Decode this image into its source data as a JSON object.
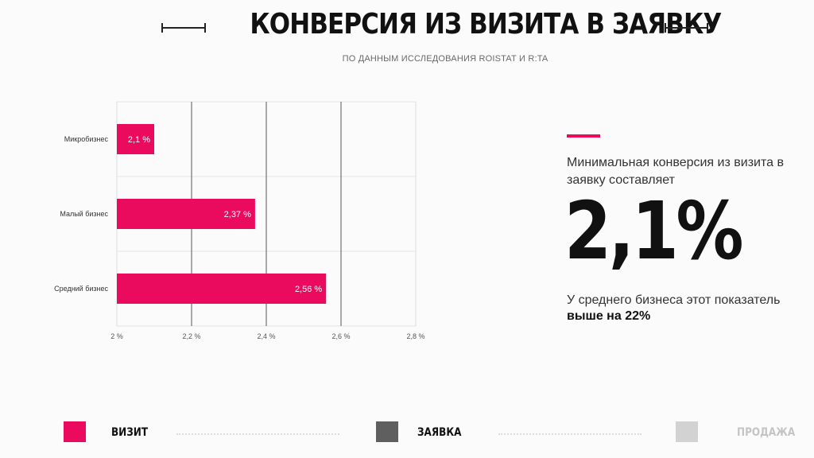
{
  "header": {
    "title": "КОНВЕРСИЯ ИЗ ВИЗИТА В ЗАЯВКУ",
    "subtitle": "ПО ДАННЫМ ИССЛЕДОВАНИЯ ROISTAT И R:TA"
  },
  "chart_data": {
    "type": "bar",
    "orientation": "horizontal",
    "categories": [
      "Микробизнес",
      "Малый бизнес",
      "Средний бизнес"
    ],
    "values": [
      2.1,
      2.37,
      2.56
    ],
    "data_labels": [
      "2,1 %",
      "2,37 %",
      "2,56 %"
    ],
    "xlim": [
      2,
      2.8
    ],
    "x_ticks": [
      2,
      2.2,
      2.4,
      2.6,
      2.8
    ],
    "x_tick_labels": [
      "2 %",
      "2,2 %",
      "2,4 %",
      "2,6 %",
      "2,8 %"
    ],
    "bar_color": "#ea0b5f",
    "grid": true,
    "title": "",
    "xlabel": "",
    "ylabel": ""
  },
  "insight": {
    "text": "Минимальная конверсия из визита в заявку составляет",
    "value": "2,1%",
    "note_prefix": "У среднего бизнеса этот показатель ",
    "note_bold": "выше на 22%"
  },
  "legend": [
    {
      "label": "ВИЗИТ",
      "color": "#ea0b5f",
      "text_color": "#111111"
    },
    {
      "label": "ЗАЯВКА",
      "color": "#5f5f5f",
      "text_color": "#111111"
    },
    {
      "label": "ПРОДАЖА",
      "color": "#d2d2d2",
      "text_color": "#c4c4c4"
    }
  ],
  "colors": {
    "accent": "#ea0b5f"
  }
}
